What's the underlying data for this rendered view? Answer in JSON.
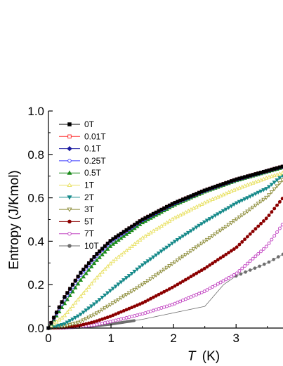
{
  "chart_data": {
    "type": "line",
    "title": "",
    "xlabel_symbol": "T",
    "xlabel_unit": "(K)",
    "ylabel": "Entropy (J/Kmol)",
    "xlim": [
      0,
      3.75
    ],
    "ylim": [
      0,
      1.0
    ],
    "x_ticks": [
      0,
      1,
      2,
      3
    ],
    "x_tick_labels": [
      "0",
      "1",
      "2",
      "3"
    ],
    "y_ticks": [
      0,
      0.2,
      0.4,
      0.6,
      0.8,
      1.0
    ],
    "y_tick_labels": [
      "0.0",
      "0.2",
      "0.4",
      "0.6",
      "0.8",
      "1.0"
    ],
    "grid": false,
    "legend_position": "top-left",
    "series": [
      {
        "name": "0T",
        "color": "#000000",
        "marker": "square-filled",
        "x_max": 3.75,
        "points": [
          [
            0,
            0
          ],
          [
            0.25,
            0.14
          ],
          [
            0.5,
            0.25
          ],
          [
            0.75,
            0.335
          ],
          [
            1.0,
            0.405
          ],
          [
            1.5,
            0.5
          ],
          [
            2.0,
            0.575
          ],
          [
            2.5,
            0.635
          ],
          [
            3.0,
            0.685
          ],
          [
            3.5,
            0.725
          ],
          [
            3.75,
            0.745
          ]
        ]
      },
      {
        "name": "0.01T",
        "color": "#ff2a2a",
        "marker": "square-open",
        "x_max": 3.75,
        "points": [
          [
            0,
            0
          ],
          [
            0.25,
            0.14
          ],
          [
            0.5,
            0.25
          ],
          [
            0.75,
            0.335
          ],
          [
            1.0,
            0.405
          ],
          [
            1.5,
            0.5
          ],
          [
            2.0,
            0.575
          ],
          [
            2.5,
            0.635
          ],
          [
            3.0,
            0.685
          ],
          [
            3.5,
            0.725
          ],
          [
            3.75,
            0.745
          ]
        ]
      },
      {
        "name": "0.1T",
        "color": "#1a1aa0",
        "marker": "diamond-filled",
        "x_max": 3.75,
        "points": [
          [
            0,
            0
          ],
          [
            0.25,
            0.138
          ],
          [
            0.5,
            0.248
          ],
          [
            0.75,
            0.333
          ],
          [
            1.0,
            0.403
          ],
          [
            1.5,
            0.499
          ],
          [
            2.0,
            0.574
          ],
          [
            2.5,
            0.634
          ],
          [
            3.0,
            0.684
          ],
          [
            3.5,
            0.724
          ],
          [
            3.75,
            0.744
          ]
        ]
      },
      {
        "name": "0.25T",
        "color": "#3a3aff",
        "marker": "circle-open",
        "x_max": 3.75,
        "points": [
          [
            0,
            0
          ],
          [
            0.25,
            0.128
          ],
          [
            0.5,
            0.238
          ],
          [
            0.75,
            0.325
          ],
          [
            1.0,
            0.397
          ],
          [
            1.5,
            0.495
          ],
          [
            2.0,
            0.571
          ],
          [
            2.5,
            0.632
          ],
          [
            3.0,
            0.682
          ],
          [
            3.5,
            0.723
          ],
          [
            3.75,
            0.743
          ]
        ]
      },
      {
        "name": "0.5T",
        "color": "#1a8a1a",
        "marker": "triangle-up-filled",
        "x_max": 3.75,
        "points": [
          [
            0,
            0
          ],
          [
            0.25,
            0.11
          ],
          [
            0.5,
            0.215
          ],
          [
            0.75,
            0.305
          ],
          [
            1.0,
            0.38
          ],
          [
            1.5,
            0.485
          ],
          [
            2.0,
            0.565
          ],
          [
            2.5,
            0.628
          ],
          [
            3.0,
            0.679
          ],
          [
            3.5,
            0.72
          ],
          [
            3.75,
            0.74
          ]
        ]
      },
      {
        "name": "1T",
        "color": "#e8e060",
        "marker": "triangle-up-open",
        "x_max": 3.75,
        "points": [
          [
            0,
            0
          ],
          [
            0.25,
            0.055
          ],
          [
            0.5,
            0.14
          ],
          [
            0.75,
            0.225
          ],
          [
            1.0,
            0.3
          ],
          [
            1.5,
            0.415
          ],
          [
            2.0,
            0.505
          ],
          [
            2.5,
            0.578
          ],
          [
            3.0,
            0.64
          ],
          [
            3.5,
            0.693
          ],
          [
            3.75,
            0.715
          ]
        ]
      },
      {
        "name": "2T",
        "color": "#178a8a",
        "marker": "triangle-down-filled",
        "x_max": 3.75,
        "points": [
          [
            0,
            0
          ],
          [
            0.25,
            0.018
          ],
          [
            0.5,
            0.06
          ],
          [
            0.75,
            0.115
          ],
          [
            1.0,
            0.175
          ],
          [
            1.5,
            0.29
          ],
          [
            2.0,
            0.395
          ],
          [
            2.5,
            0.49
          ],
          [
            3.0,
            0.575
          ],
          [
            3.5,
            0.645
          ],
          [
            3.75,
            0.705
          ]
        ]
      },
      {
        "name": "3T",
        "color": "#8a8a35",
        "marker": "triangle-down-open",
        "x_max": 3.75,
        "points": [
          [
            0,
            0
          ],
          [
            0.25,
            0.007
          ],
          [
            0.5,
            0.028
          ],
          [
            0.75,
            0.065
          ],
          [
            1.0,
            0.11
          ],
          [
            1.5,
            0.2
          ],
          [
            2.0,
            0.3
          ],
          [
            2.5,
            0.4
          ],
          [
            3.0,
            0.5
          ],
          [
            3.5,
            0.605
          ],
          [
            3.75,
            0.685
          ]
        ]
      },
      {
        "name": "5T",
        "color": "#8b0000",
        "marker": "circle-filled",
        "x_max": 3.75,
        "points": [
          [
            0,
            0
          ],
          [
            0.25,
            0.003
          ],
          [
            0.5,
            0.012
          ],
          [
            0.75,
            0.03
          ],
          [
            1.0,
            0.055
          ],
          [
            1.5,
            0.115
          ],
          [
            2.0,
            0.19
          ],
          [
            2.5,
            0.275
          ],
          [
            3.0,
            0.37
          ],
          [
            3.5,
            0.51
          ],
          [
            3.75,
            0.6
          ]
        ]
      },
      {
        "name": "7T",
        "color": "#c040c0",
        "marker": "circle-open",
        "x_max": 3.75,
        "points": [
          [
            0,
            0
          ],
          [
            0.25,
            0.001
          ],
          [
            0.5,
            0.006
          ],
          [
            0.75,
            0.015
          ],
          [
            1.0,
            0.03
          ],
          [
            1.5,
            0.065
          ],
          [
            2.0,
            0.11
          ],
          [
            2.5,
            0.17
          ],
          [
            3.0,
            0.25
          ],
          [
            3.5,
            0.38
          ],
          [
            3.75,
            0.48
          ]
        ]
      },
      {
        "name": "10T",
        "color": "#6e6e6e",
        "marker": "circle-filled",
        "x_max": 3.75,
        "points": [
          [
            0,
            0
          ],
          [
            0.25,
            0.001
          ],
          [
            0.5,
            0.004
          ],
          [
            0.75,
            0.01
          ],
          [
            1.0,
            0.018
          ],
          [
            1.5,
            0.04
          ],
          [
            2.0,
            0.07
          ],
          [
            2.5,
            0.1
          ],
          [
            2.8,
            0.2
          ],
          [
            3.0,
            0.24
          ],
          [
            3.5,
            0.3
          ],
          [
            3.75,
            0.34
          ]
        ]
      }
    ]
  }
}
